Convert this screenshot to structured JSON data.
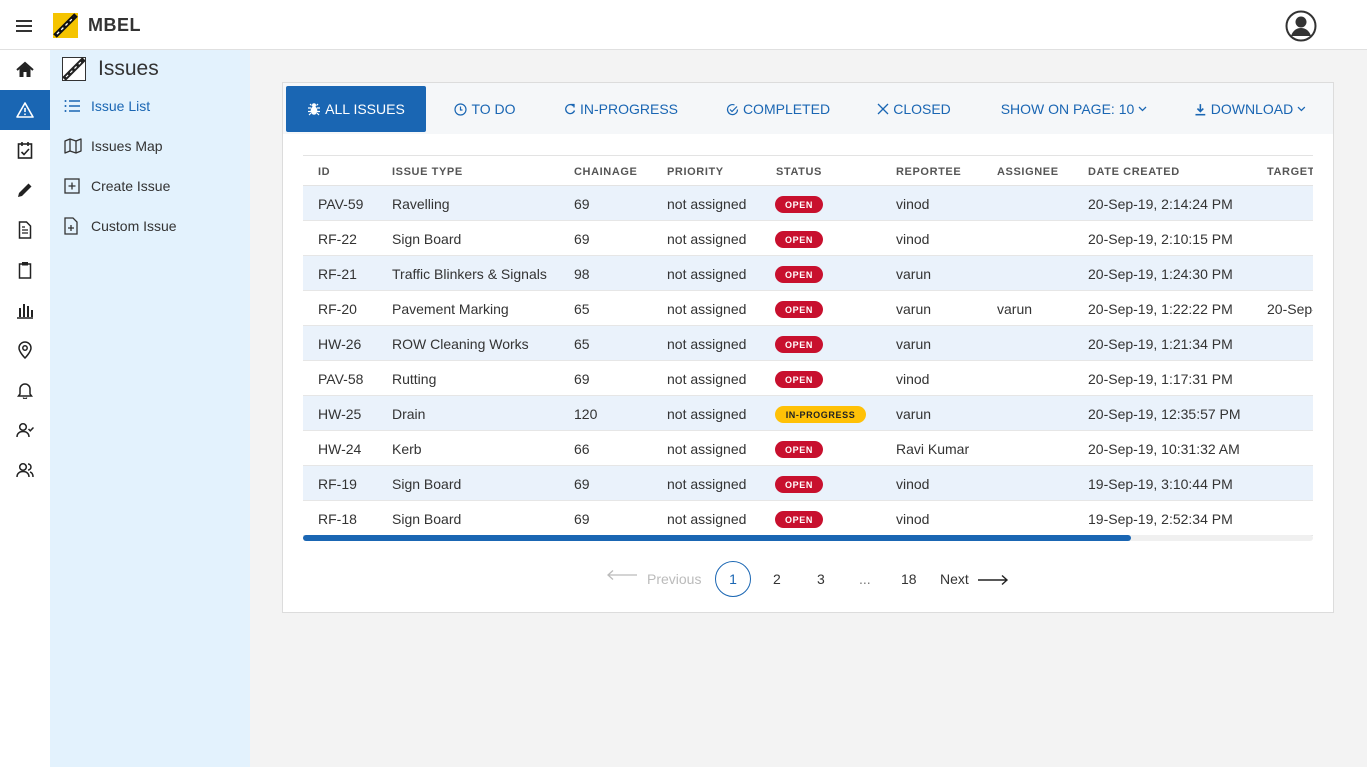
{
  "app": {
    "brand": "MBEL"
  },
  "subnav": {
    "title": "Issues",
    "items": [
      {
        "label": "Issue List",
        "icon": "list-icon"
      },
      {
        "label": "Issues Map",
        "icon": "map-icon"
      },
      {
        "label": "Create Issue",
        "icon": "plus-square-icon"
      },
      {
        "label": "Custom Issue",
        "icon": "file-plus-icon"
      }
    ]
  },
  "rail": [
    "home-icon",
    "warning-icon",
    "checklist-icon",
    "pencil-icon",
    "document-icon",
    "clipboard-icon",
    "bar-chart-icon",
    "location-pin-icon",
    "bell-icon",
    "user-check-icon",
    "users-icon"
  ],
  "tabs": {
    "all": "ALL ISSUES",
    "todo": "TO DO",
    "inprogress": "IN-PROGRESS",
    "completed": "COMPLETED",
    "closed": "CLOSED",
    "show": "SHOW ON PAGE: 10",
    "download": "DOWNLOAD"
  },
  "table": {
    "headers": [
      "ID",
      "ISSUE TYPE",
      "CHAINAGE",
      "PRIORITY",
      "STATUS",
      "REPORTEE",
      "ASSIGNEE",
      "DATE CREATED",
      "TARGET"
    ],
    "rows": [
      {
        "id": "PAV-59",
        "type": "Ravelling",
        "chainage": "69",
        "priority": "not assigned",
        "status": "OPEN",
        "reportee": "vinod",
        "assignee": "",
        "created": "20-Sep-19, 2:14:24 PM",
        "target": ""
      },
      {
        "id": "RF-22",
        "type": "Sign Board",
        "chainage": "69",
        "priority": "not assigned",
        "status": "OPEN",
        "reportee": "vinod",
        "assignee": "",
        "created": "20-Sep-19, 2:10:15 PM",
        "target": ""
      },
      {
        "id": "RF-21",
        "type": "Traffic Blinkers & Signals",
        "chainage": "98",
        "priority": "not assigned",
        "status": "OPEN",
        "reportee": "varun",
        "assignee": "",
        "created": "20-Sep-19, 1:24:30 PM",
        "target": ""
      },
      {
        "id": "RF-20",
        "type": "Pavement Marking",
        "chainage": "65",
        "priority": "not assigned",
        "status": "OPEN",
        "reportee": "varun",
        "assignee": "varun",
        "created": "20-Sep-19, 1:22:22 PM",
        "target": "20-Sep-"
      },
      {
        "id": "HW-26",
        "type": "ROW Cleaning Works",
        "chainage": "65",
        "priority": "not assigned",
        "status": "OPEN",
        "reportee": "varun",
        "assignee": "",
        "created": "20-Sep-19, 1:21:34 PM",
        "target": ""
      },
      {
        "id": "PAV-58",
        "type": "Rutting",
        "chainage": "69",
        "priority": "not assigned",
        "status": "OPEN",
        "reportee": "vinod",
        "assignee": "",
        "created": "20-Sep-19, 1:17:31 PM",
        "target": ""
      },
      {
        "id": "HW-25",
        "type": "Drain",
        "chainage": "120",
        "priority": "not assigned",
        "status": "IN-PROGRESS",
        "reportee": "varun",
        "assignee": "",
        "created": "20-Sep-19, 12:35:57 PM",
        "target": ""
      },
      {
        "id": "HW-24",
        "type": "Kerb",
        "chainage": "66",
        "priority": "not assigned",
        "status": "OPEN",
        "reportee": "Ravi Kumar",
        "assignee": "",
        "created": "20-Sep-19, 10:31:32 AM",
        "target": ""
      },
      {
        "id": "RF-19",
        "type": "Sign Board",
        "chainage": "69",
        "priority": "not assigned",
        "status": "OPEN",
        "reportee": "vinod",
        "assignee": "",
        "created": "19-Sep-19, 3:10:44 PM",
        "target": ""
      },
      {
        "id": "RF-18",
        "type": "Sign Board",
        "chainage": "69",
        "priority": "not assigned",
        "status": "OPEN",
        "reportee": "vinod",
        "assignee": "",
        "created": "19-Sep-19, 2:52:34 PM",
        "target": ""
      }
    ]
  },
  "scroll_fraction": 0.82,
  "pagination": {
    "previous": "Previous",
    "pages": [
      "1",
      "2",
      "3",
      "...",
      "18"
    ],
    "current": "1",
    "next": "Next"
  },
  "colors": {
    "accent": "#1a66b3",
    "open": "#c8102e",
    "inprogress": "#ffc107",
    "row_alt": "#eaf2fb",
    "subnav_bg": "#e3f2fd"
  }
}
